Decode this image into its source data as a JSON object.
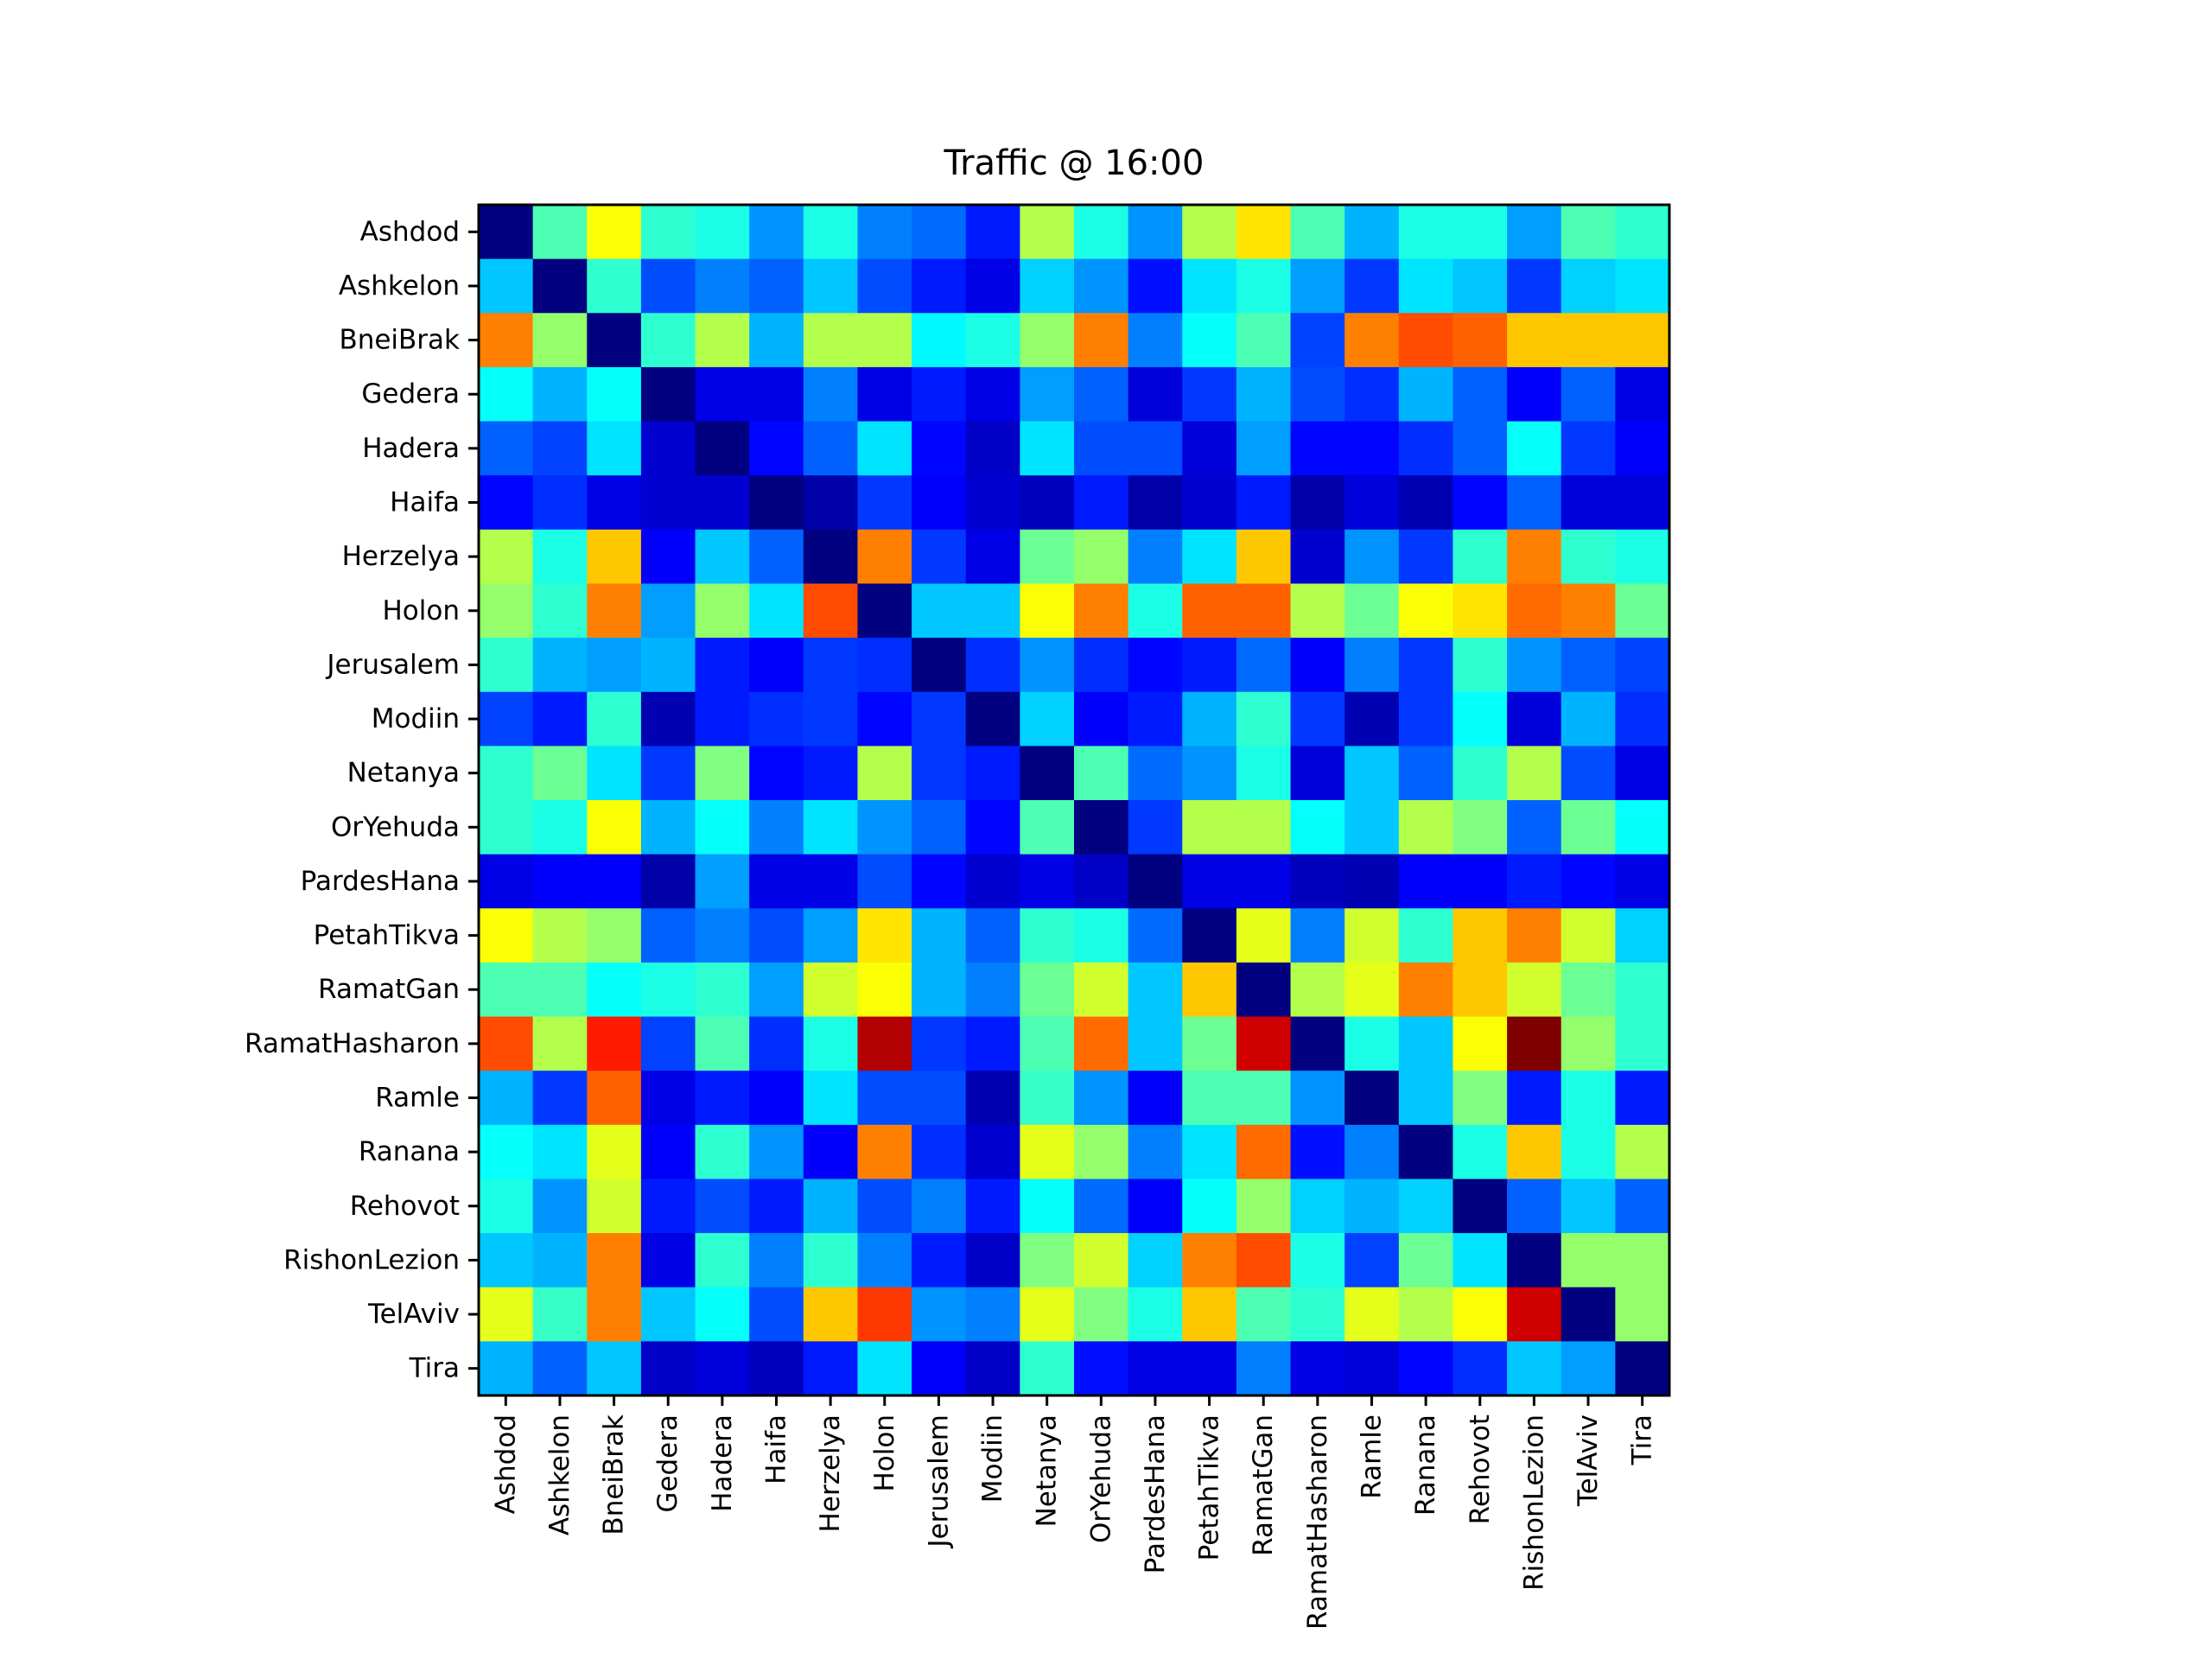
{
  "chart_data": {
    "type": "heatmap",
    "title": "Traffic @ 16:00",
    "colormap": "jet",
    "value_range": [
      0,
      1
    ],
    "labels": [
      "Ashdod",
      "Ashkelon",
      "BneiBrak",
      "Gedera",
      "Hadera",
      "Haifa",
      "Herzelya",
      "Holon",
      "Jerusalem",
      "Modiin",
      "Netanya",
      "OrYehuda",
      "PardesHana",
      "PetahTikva",
      "RamatGan",
      "RamatHasharon",
      "Ramle",
      "Ranana",
      "Rehovot",
      "RishonLezion",
      "TelAviv",
      "Tira"
    ],
    "values": [
      [
        0.0,
        0.45,
        0.62,
        0.42,
        0.4,
        0.27,
        0.4,
        0.25,
        0.23,
        0.15,
        0.55,
        0.4,
        0.27,
        0.55,
        0.65,
        0.45,
        0.3,
        0.4,
        0.4,
        0.28,
        0.45,
        0.42
      ],
      [
        0.32,
        0.0,
        0.42,
        0.2,
        0.25,
        0.22,
        0.32,
        0.2,
        0.15,
        0.1,
        0.33,
        0.27,
        0.14,
        0.35,
        0.4,
        0.28,
        0.18,
        0.35,
        0.32,
        0.18,
        0.33,
        0.35
      ],
      [
        0.75,
        0.52,
        0.0,
        0.42,
        0.55,
        0.3,
        0.55,
        0.55,
        0.37,
        0.4,
        0.52,
        0.75,
        0.25,
        0.38,
        0.45,
        0.19,
        0.75,
        0.8,
        0.78,
        0.68,
        0.68,
        0.68
      ],
      [
        0.38,
        0.3,
        0.38,
        0.0,
        0.1,
        0.1,
        0.25,
        0.1,
        0.15,
        0.1,
        0.28,
        0.22,
        0.09,
        0.18,
        0.3,
        0.2,
        0.17,
        0.3,
        0.22,
        0.12,
        0.22,
        0.1
      ],
      [
        0.22,
        0.19,
        0.35,
        0.08,
        0.0,
        0.13,
        0.22,
        0.35,
        0.13,
        0.07,
        0.35,
        0.2,
        0.2,
        0.09,
        0.28,
        0.13,
        0.13,
        0.17,
        0.22,
        0.38,
        0.18,
        0.12
      ],
      [
        0.13,
        0.17,
        0.1,
        0.08,
        0.08,
        0.0,
        0.04,
        0.18,
        0.12,
        0.08,
        0.06,
        0.15,
        0.04,
        0.08,
        0.15,
        0.04,
        0.09,
        0.05,
        0.13,
        0.22,
        0.09,
        0.09
      ],
      [
        0.55,
        0.4,
        0.68,
        0.12,
        0.32,
        0.22,
        0.0,
        0.75,
        0.18,
        0.1,
        0.48,
        0.52,
        0.25,
        0.35,
        0.68,
        0.08,
        0.27,
        0.18,
        0.42,
        0.75,
        0.42,
        0.4
      ],
      [
        0.52,
        0.42,
        0.75,
        0.28,
        0.52,
        0.35,
        0.8,
        0.0,
        0.32,
        0.32,
        0.62,
        0.75,
        0.4,
        0.78,
        0.78,
        0.55,
        0.48,
        0.62,
        0.65,
        0.77,
        0.75,
        0.48
      ],
      [
        0.42,
        0.3,
        0.28,
        0.3,
        0.15,
        0.12,
        0.18,
        0.17,
        0.0,
        0.17,
        0.27,
        0.17,
        0.13,
        0.15,
        0.23,
        0.12,
        0.25,
        0.18,
        0.42,
        0.27,
        0.22,
        0.19
      ],
      [
        0.19,
        0.15,
        0.42,
        0.05,
        0.15,
        0.17,
        0.18,
        0.13,
        0.18,
        0.0,
        0.33,
        0.12,
        0.15,
        0.3,
        0.42,
        0.18,
        0.05,
        0.18,
        0.38,
        0.09,
        0.3,
        0.17
      ],
      [
        0.42,
        0.48,
        0.35,
        0.18,
        0.5,
        0.13,
        0.15,
        0.55,
        0.18,
        0.15,
        0.0,
        0.45,
        0.23,
        0.27,
        0.4,
        0.09,
        0.32,
        0.22,
        0.42,
        0.55,
        0.2,
        0.1
      ],
      [
        0.42,
        0.4,
        0.62,
        0.3,
        0.38,
        0.25,
        0.35,
        0.27,
        0.22,
        0.13,
        0.45,
        0.0,
        0.18,
        0.55,
        0.55,
        0.38,
        0.32,
        0.55,
        0.5,
        0.22,
        0.48,
        0.38
      ],
      [
        0.1,
        0.12,
        0.12,
        0.04,
        0.28,
        0.1,
        0.1,
        0.2,
        0.13,
        0.08,
        0.1,
        0.07,
        0.0,
        0.1,
        0.1,
        0.06,
        0.05,
        0.12,
        0.12,
        0.15,
        0.13,
        0.1
      ],
      [
        0.62,
        0.55,
        0.52,
        0.22,
        0.25,
        0.2,
        0.28,
        0.65,
        0.3,
        0.22,
        0.42,
        0.4,
        0.23,
        0.0,
        0.6,
        0.25,
        0.58,
        0.42,
        0.68,
        0.75,
        0.58,
        0.33
      ],
      [
        0.45,
        0.45,
        0.38,
        0.4,
        0.42,
        0.28,
        0.58,
        0.62,
        0.3,
        0.25,
        0.48,
        0.58,
        0.32,
        0.68,
        0.0,
        0.55,
        0.6,
        0.75,
        0.68,
        0.58,
        0.48,
        0.42
      ],
      [
        0.8,
        0.55,
        0.85,
        0.19,
        0.45,
        0.17,
        0.4,
        0.95,
        0.18,
        0.15,
        0.45,
        0.77,
        0.32,
        0.48,
        0.92,
        0.0,
        0.4,
        0.32,
        0.62,
        1.0,
        0.52,
        0.42
      ],
      [
        0.3,
        0.18,
        0.78,
        0.1,
        0.15,
        0.12,
        0.35,
        0.2,
        0.2,
        0.05,
        0.43,
        0.27,
        0.12,
        0.45,
        0.45,
        0.27,
        0.0,
        0.32,
        0.5,
        0.15,
        0.4,
        0.15
      ],
      [
        0.38,
        0.35,
        0.6,
        0.12,
        0.42,
        0.27,
        0.12,
        0.75,
        0.17,
        0.08,
        0.6,
        0.52,
        0.25,
        0.35,
        0.77,
        0.14,
        0.25,
        0.0,
        0.4,
        0.68,
        0.4,
        0.55
      ],
      [
        0.4,
        0.27,
        0.58,
        0.15,
        0.2,
        0.15,
        0.3,
        0.2,
        0.25,
        0.15,
        0.38,
        0.23,
        0.12,
        0.38,
        0.52,
        0.33,
        0.3,
        0.33,
        0.0,
        0.22,
        0.32,
        0.22
      ],
      [
        0.32,
        0.3,
        0.75,
        0.1,
        0.42,
        0.25,
        0.42,
        0.25,
        0.15,
        0.07,
        0.5,
        0.58,
        0.33,
        0.75,
        0.8,
        0.4,
        0.19,
        0.48,
        0.35,
        0.0,
        0.52,
        0.52
      ],
      [
        0.6,
        0.43,
        0.75,
        0.32,
        0.38,
        0.2,
        0.68,
        0.82,
        0.27,
        0.25,
        0.6,
        0.5,
        0.4,
        0.68,
        0.45,
        0.42,
        0.6,
        0.55,
        0.62,
        0.92,
        0.0,
        0.52
      ],
      [
        0.3,
        0.22,
        0.32,
        0.07,
        0.09,
        0.06,
        0.15,
        0.35,
        0.12,
        0.07,
        0.42,
        0.14,
        0.1,
        0.1,
        0.25,
        0.1,
        0.09,
        0.13,
        0.17,
        0.32,
        0.28,
        0.0
      ]
    ]
  }
}
